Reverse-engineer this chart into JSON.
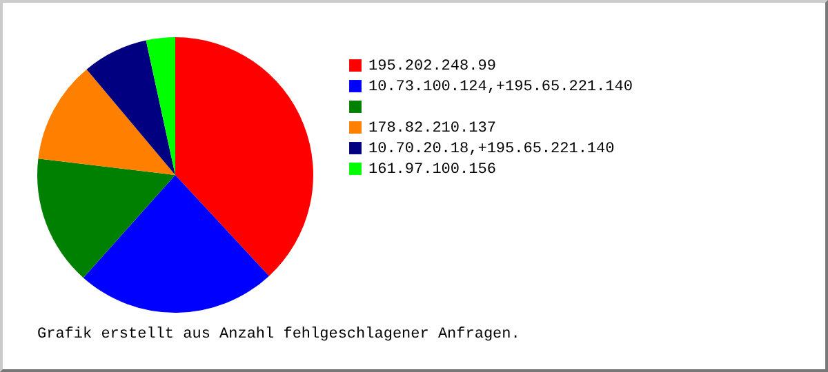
{
  "chart_data": {
    "type": "pie",
    "categories": [
      "195.202.248.99",
      "10.73.100.124,+195.65.221.140",
      null,
      "178.82.210.137",
      "10.70.20.18,+195.65.221.140",
      "161.97.100.156"
    ],
    "values": [
      38.1,
      23.5,
      15.3,
      12,
      7.7,
      3.4
    ],
    "colors": [
      "#ff0000",
      "#0000ff",
      "#008000",
      "#ff8000",
      "#000080",
      "#00ff00"
    ],
    "legend": "right",
    "annotations": [
      "Grafik erstellt aus Anzahl fehlgeschlagener Anfragen."
    ]
  }
}
